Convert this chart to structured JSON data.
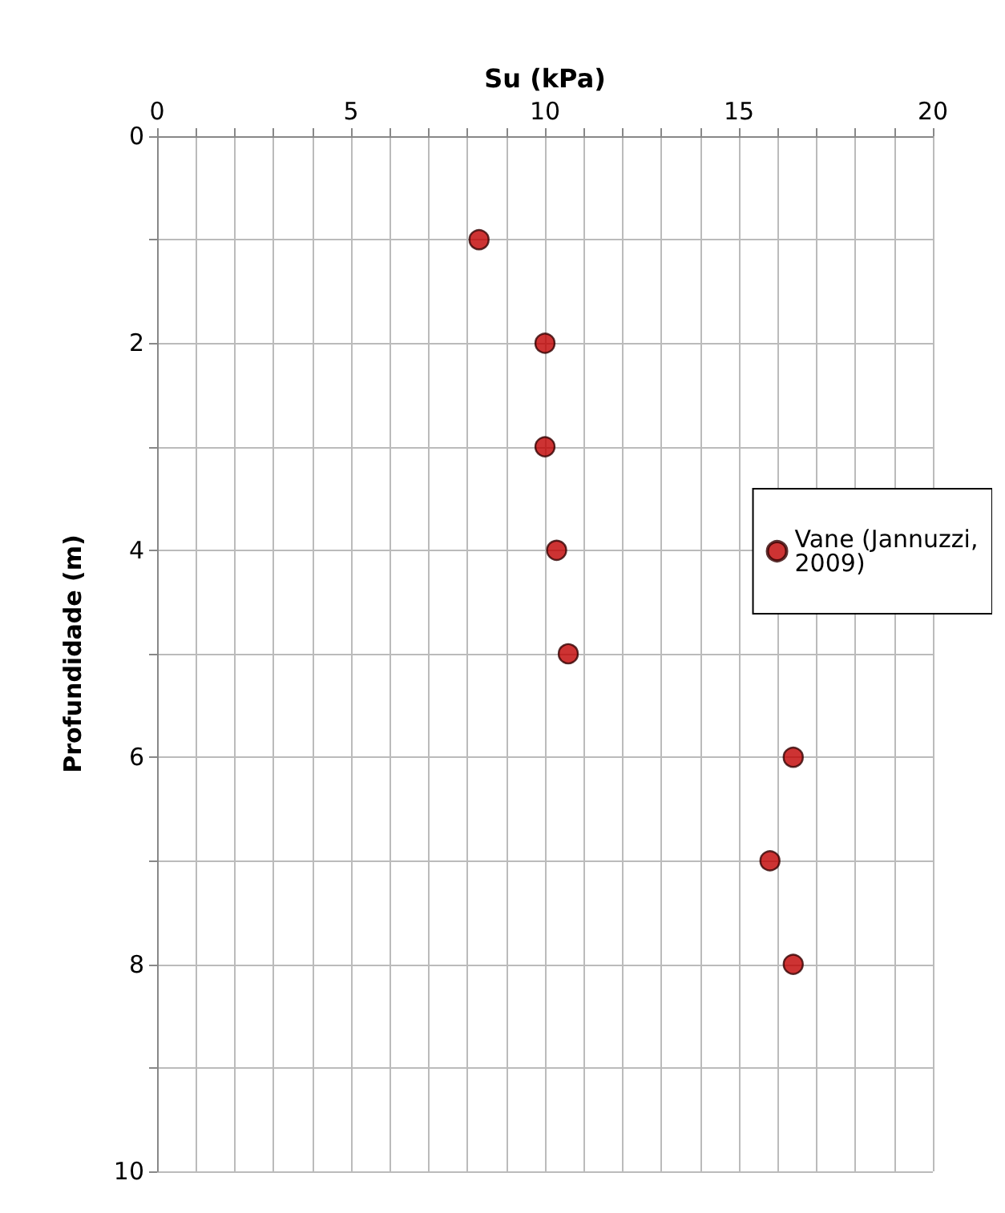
{
  "chart_data": {
    "type": "scatter",
    "xlabel": "Su (kPa)",
    "ylabel": "Profundidade (m)",
    "x": [
      8.3,
      10.0,
      10.0,
      10.3,
      10.6,
      16.4,
      15.8,
      16.4
    ],
    "series": [
      {
        "name": "Vane (Jannuzzi, 2009)",
        "color": "#c00000",
        "values": [
          1,
          2,
          3,
          4,
          5,
          6,
          7,
          8
        ]
      }
    ],
    "xlim": [
      0,
      20
    ],
    "xticks": [
      0,
      {
        "value": 1,
        "label": null
      },
      {
        "value": 2,
        "label": null
      },
      {
        "value": 3,
        "label": null
      },
      {
        "value": 4,
        "label": null
      },
      5,
      {
        "value": 6,
        "label": null
      },
      {
        "value": 7,
        "label": null
      },
      {
        "value": 8,
        "label": null
      },
      {
        "value": 9,
        "label": null
      },
      10,
      {
        "value": 11,
        "label": null
      },
      {
        "value": 12,
        "label": null
      },
      {
        "value": 13,
        "label": null
      },
      {
        "value": 14,
        "label": null
      },
      15,
      {
        "value": 16,
        "label": null
      },
      {
        "value": 17,
        "label": null
      },
      {
        "value": 18,
        "label": null
      },
      {
        "value": 19,
        "label": null
      },
      20
    ],
    "ylim": [
      10,
      0
    ],
    "yticks": [
      0,
      {
        "value": 1,
        "label": null
      },
      2,
      {
        "value": 3,
        "label": null
      },
      4,
      {
        "value": 5,
        "label": null
      },
      6,
      {
        "value": 7,
        "label": null
      },
      8,
      {
        "value": 9,
        "label": null
      },
      10
    ],
    "grid": true,
    "legend": "right",
    "marker": "circle"
  }
}
